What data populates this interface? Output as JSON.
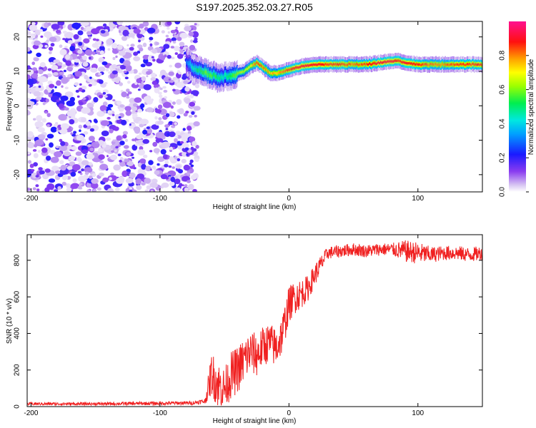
{
  "title": "S197.2025.352.03.27.R05",
  "chart_data": [
    {
      "type": "heatmap",
      "xlabel": "Height of straight line (km)",
      "ylabel": "Frequency (Hz)",
      "xlim": [
        -203,
        150
      ],
      "ylim": [
        -25,
        24.5
      ],
      "xticks": [
        -200,
        -100,
        0,
        100
      ],
      "yticks": [
        -20,
        -10,
        0,
        10,
        20
      ],
      "colorbar": {
        "label": "Normalized spectral amplitude",
        "range": [
          0,
          1
        ],
        "ticks": [
          "0.0",
          "0.2",
          "0.4",
          "0.6",
          "0.8"
        ]
      },
      "noise_region": {
        "x_from": -203,
        "x_to": -75,
        "amplitude": "0.0-0.2"
      },
      "ridge": {
        "x": [
          -80,
          -75,
          -70,
          -65,
          -60,
          -55,
          -50,
          -45,
          -40,
          -35,
          -30,
          -25,
          -20,
          -15,
          -10,
          -5,
          0,
          10,
          20,
          30,
          40,
          50,
          60,
          70,
          80,
          85,
          90,
          100,
          110,
          120,
          130,
          140,
          150
        ],
        "frequency": [
          13,
          11,
          10.5,
          9.5,
          9,
          8,
          8.5,
          8.5,
          9.5,
          10,
          11.5,
          12.5,
          11,
          9.5,
          9.5,
          10,
          10.5,
          11.5,
          12,
          12,
          12,
          12,
          12,
          12.5,
          13,
          13,
          12.5,
          12,
          12,
          12,
          12,
          12,
          12
        ],
        "amplitude": [
          0.3,
          0.45,
          0.5,
          0.6,
          0.55,
          0.5,
          0.45,
          0.55,
          0.6,
          0.65,
          0.7,
          0.85,
          0.8,
          0.75,
          0.75,
          0.8,
          0.85,
          0.9,
          0.9,
          0.85,
          0.85,
          0.8,
          0.85,
          0.9,
          0.9,
          0.85,
          0.9,
          0.85,
          0.8,
          0.8,
          0.85,
          0.85,
          0.85
        ]
      }
    },
    {
      "type": "line",
      "xlabel": "Height of straight line (km)",
      "ylabel": "SNR (10 * v/v)",
      "xlim": [
        -203,
        150
      ],
      "ylim": [
        0,
        940
      ],
      "xticks": [
        -200,
        -100,
        0,
        100
      ],
      "yticks": [
        0,
        200,
        400,
        600,
        800
      ],
      "series": [
        {
          "name": "SNR",
          "color": "#f02020",
          "x": [
            -203,
            -150,
            -100,
            -75,
            -65,
            -60,
            -55,
            -50,
            -45,
            -40,
            -35,
            -30,
            -25,
            -20,
            -15,
            -10,
            -5,
            0,
            5,
            10,
            15,
            20,
            25,
            30,
            40,
            50,
            60,
            70,
            80,
            90,
            100,
            110,
            120,
            130,
            140,
            150
          ],
          "y": [
            15,
            15,
            18,
            20,
            30,
            180,
            120,
            100,
            170,
            200,
            250,
            300,
            280,
            330,
            350,
            320,
            400,
            560,
            600,
            620,
            650,
            720,
            780,
            840,
            850,
            860,
            850,
            860,
            860,
            850,
            840,
            830,
            840,
            840,
            830,
            840
          ],
          "noise_amplitude": [
            8,
            8,
            10,
            10,
            15,
            120,
            130,
            110,
            130,
            130,
            130,
            120,
            120,
            110,
            110,
            110,
            110,
            100,
            90,
            80,
            70,
            60,
            50,
            35,
            35,
            35,
            35,
            35,
            35,
            60,
            60,
            45,
            40,
            40,
            40,
            40
          ]
        }
      ]
    }
  ]
}
